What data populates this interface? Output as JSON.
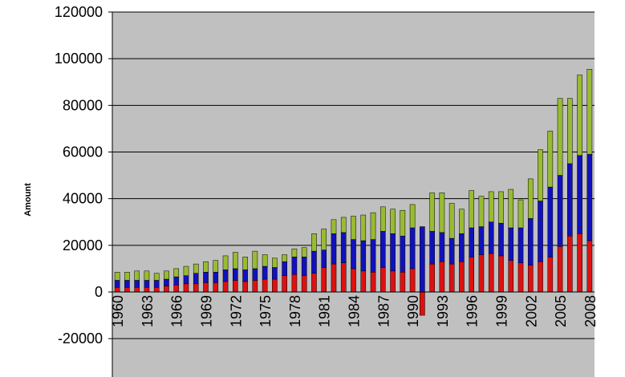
{
  "chart_data": {
    "type": "bar",
    "stacked": true,
    "title": "",
    "xlabel": "",
    "ylabel": "Amount",
    "ylim": [
      -20000,
      120000
    ],
    "y_ticks": [
      "120000",
      "100000",
      "80000",
      "60000",
      "40000",
      "20000",
      "0",
      "-20000"
    ],
    "x_tick_labels": [
      "1960",
      "1963",
      "1966",
      "1969",
      "1972",
      "1975",
      "1978",
      "1981",
      "1984",
      "1987",
      "1990",
      "1993",
      "1996",
      "1999",
      "2002",
      "2005",
      "2008"
    ],
    "grid": "horizontal",
    "background": "#c0c0c0",
    "categories": [
      1960,
      1961,
      1962,
      1963,
      1964,
      1965,
      1966,
      1967,
      1968,
      1969,
      1970,
      1971,
      1972,
      1973,
      1974,
      1975,
      1976,
      1977,
      1978,
      1979,
      1980,
      1981,
      1982,
      1983,
      1984,
      1985,
      1986,
      1987,
      1988,
      1989,
      1990,
      1991,
      1992,
      1993,
      1994,
      1995,
      1996,
      1997,
      1998,
      1999,
      2000,
      2001,
      2002,
      2003,
      2004,
      2005,
      2006,
      2007,
      2008
    ],
    "series": [
      {
        "color": "#dd1111",
        "values": [
          2000,
          2000,
          2000,
          2000,
          2000,
          2500,
          3000,
          3500,
          3500,
          4000,
          4000,
          4500,
          5000,
          4500,
          5000,
          5500,
          5500,
          7000,
          7500,
          7000,
          8000,
          10500,
          12000,
          12500,
          10000,
          9000,
          8500,
          10500,
          9000,
          8500,
          10000,
          -10000,
          12000,
          13000,
          12000,
          13000,
          15000,
          16000,
          16500,
          15500,
          13500,
          12500,
          11500,
          13000,
          15000,
          19500,
          24000,
          25000,
          22000
        ]
      },
      {
        "color": "#1111bb",
        "values": [
          3000,
          3000,
          3000,
          3000,
          3000,
          3000,
          3500,
          3500,
          4500,
          4500,
          4500,
          5000,
          5000,
          5000,
          5000,
          5500,
          5000,
          6000,
          7500,
          8000,
          9500,
          7500,
          13000,
          13000,
          12500,
          13000,
          14000,
          15500,
          16000,
          15500,
          17500,
          28000,
          14000,
          12500,
          11000,
          12000,
          12500,
          12000,
          13500,
          14000,
          14000,
          15000,
          20000,
          26000,
          30000,
          30500,
          31000,
          33500,
          37000
        ]
      },
      {
        "color": "#99bb33",
        "values": [
          3500,
          3500,
          4000,
          4000,
          3000,
          3500,
          3500,
          4000,
          4000,
          4500,
          5000,
          6000,
          7000,
          5500,
          7500,
          5000,
          4000,
          3000,
          3500,
          4000,
          7500,
          9000,
          6000,
          6500,
          10000,
          11000,
          11500,
          10500,
          10500,
          11000,
          10000,
          0,
          16500,
          17000,
          15000,
          10500,
          16000,
          13000,
          13000,
          13500,
          16500,
          12000,
          17000,
          22000,
          24000,
          33000,
          28000,
          34500,
          36500
        ]
      }
    ]
  }
}
